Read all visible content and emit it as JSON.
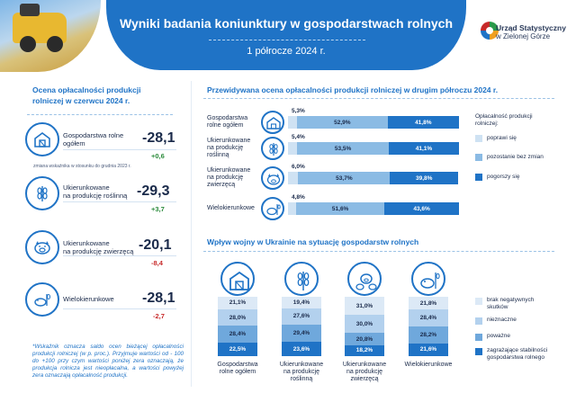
{
  "header": {
    "title": "Wyniki badania koniunktury w gospodarstwach rolnych",
    "subtitle": "1 półrocze 2024 r.",
    "logo_line1": "Urząd Statystyczny",
    "logo_line2": "w Zielonej Górze"
  },
  "left": {
    "title_line1": "Ocena opłacalności produkcji",
    "title_line2": "rolniczej w czerwcu 2024 r.",
    "items": [
      {
        "label_line1": "Gospodarstwa rolne",
        "label_line2": "ogółem",
        "value": "-28,1",
        "change": "+0,6",
        "icon": "farm-building-icon"
      },
      {
        "label_line1": "Ukierunkowane",
        "label_line2": "na produkcję roślinną",
        "value": "-29,3",
        "change": "+3,7",
        "icon": "wheat-icon"
      },
      {
        "label_line1": "Ukierunkowane",
        "label_line2": "na produkcję zwierzęcą",
        "value": "-20,1",
        "change": "-8,4",
        "icon": "pig-icon"
      },
      {
        "label_line1": "Wielokierunkowe",
        "label_line2": "",
        "value": "-28,1",
        "change": "-2,7",
        "icon": "mixed-farm-icon"
      }
    ],
    "change_note": "zmiana wskaźnika w stosunku do grudnia 2023 r.",
    "footnote": "*Wskaźnik oznacza saldo ocen bieżącej opłacalności produkcji rolniczej (w p. proc.). Przyjmuje wartości od - 100 do +100 przy czym wartości poniżej zera oznaczają, że produkcja rolnicza jest nieopłacalna, a wartości powyżej zera oznaczają opłacalność produkcji."
  },
  "colors": {
    "light": "#cfe2f3",
    "mid": "#8bbbe4",
    "dark": "#1f73c6",
    "bottom_none": "#dce9f6",
    "bottom_small": "#b3d1ee",
    "bottom_serious": "#6fa8dc",
    "bottom_threat": "#1f73c6"
  },
  "chart_data": [
    {
      "type": "bar",
      "orientation": "horizontal-stacked",
      "title": "Przewidywana ocena opłacalności produkcji rolniczej w drugim półroczu 2024 r.",
      "categories": [
        "Gospodarstwa rolne ogółem",
        "Ukierunkowane na produkcję roślinną",
        "Ukierunkowane na produkcję zwierzęcą",
        "Wielokierunkowe"
      ],
      "category_lines": [
        [
          "Gospodarstwa",
          "rolne ogółem"
        ],
        [
          "Ukierunkowane",
          "na produkcję",
          "roślinną"
        ],
        [
          "Ukierunkowane",
          "na produkcję",
          "zwierzęcą"
        ],
        [
          "Wielokierunkowe"
        ]
      ],
      "legend_title_lines": [
        "Opłacalność produkcji",
        "rolniczej:"
      ],
      "series": [
        {
          "name": "poprawi się",
          "values": [
            5.3,
            5.4,
            6.0,
            4.8
          ],
          "labels": [
            "5,3%",
            "5,4%",
            "6,0%",
            "4,8%"
          ]
        },
        {
          "name": "pozostanie bez zmian",
          "values": [
            52.9,
            53.5,
            53.7,
            51.6
          ],
          "labels": [
            "52,9%",
            "53,5%",
            "53,7%",
            "51,6%"
          ]
        },
        {
          "name": "pogorszy się",
          "values": [
            41.8,
            41.1,
            39.8,
            43.6
          ],
          "labels": [
            "41,8%",
            "41,1%",
            "39,8%",
            "43,6%"
          ]
        }
      ]
    },
    {
      "type": "bar",
      "orientation": "vertical-stacked",
      "title": "Wpływ wojny w Ukrainie na sytuację gospodarstw rolnych",
      "categories": [
        "Gospodarstwa rolne ogółem",
        "Ukierunkowane na produkcję roślinną",
        "Ukierunkowane na produkcję zwierzęcą",
        "Wielokierunkowe"
      ],
      "category_lines": [
        [
          "Gospodarstwa",
          "rolne ogółem"
        ],
        [
          "Ukierunkowane",
          "na produkcję",
          "roślinną"
        ],
        [
          "Ukierunkowane",
          "na produkcję",
          "zwierzęcą"
        ],
        [
          "Wielokierunkowe"
        ]
      ],
      "series": [
        {
          "name": "zagrażające stabilności gospodarstwa rolnego",
          "name_lines": [
            "zagrażające stabilności",
            "gospodarstwa rolnego"
          ],
          "values": [
            22.5,
            23.6,
            18.2,
            21.6
          ],
          "labels": [
            "22,5%",
            "23,6%",
            "18,2%",
            "21,6%"
          ]
        },
        {
          "name": "poważne",
          "name_lines": [
            "poważne"
          ],
          "values": [
            28.4,
            29.4,
            20.8,
            28.2
          ],
          "labels": [
            "28,4%",
            "29,4%",
            "20,8%",
            "28,2%"
          ]
        },
        {
          "name": "nieznaczne",
          "name_lines": [
            "nieznaczne"
          ],
          "values": [
            28.0,
            27.6,
            30.0,
            28.4
          ],
          "labels": [
            "28,0%",
            "27,6%",
            "30,0%",
            "28,4%"
          ]
        },
        {
          "name": "brak negatywnych skutków",
          "name_lines": [
            "brak negatywnych",
            "skutków"
          ],
          "values": [
            21.1,
            19.4,
            31.0,
            21.8
          ],
          "labels": [
            "21,1%",
            "19,4%",
            "31,0%",
            "21,8%"
          ]
        }
      ]
    }
  ]
}
